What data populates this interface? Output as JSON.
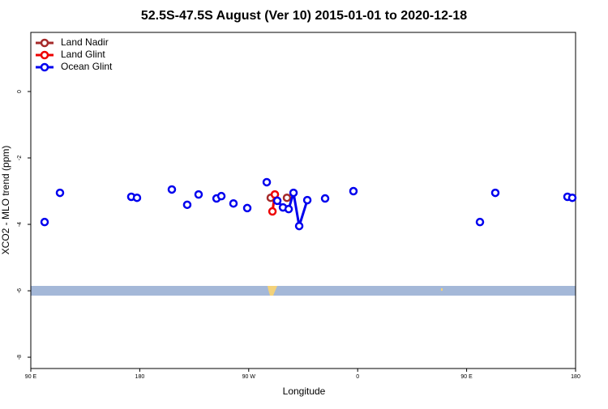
{
  "chart_data": {
    "type": "line",
    "title": "52.5S-47.5S August (Ver 10)   2015-01-01 to 2020-12-18",
    "x_label": "Longitude",
    "y_label": "XCO2 - MLO trend (ppm)",
    "xlim": [
      90,
      540
    ],
    "ylim": [
      -8.34,
      1.78
    ],
    "xticks": [
      {
        "value": 90,
        "label": "90 E"
      },
      {
        "value": 180,
        "label": "180"
      },
      {
        "value": 270,
        "label": "90 W"
      },
      {
        "value": 360,
        "label": "0"
      },
      {
        "value": 450,
        "label": "90 E"
      },
      {
        "value": 540,
        "label": "180"
      }
    ],
    "yticks": [
      0,
      -2,
      -4,
      -6,
      -8
    ],
    "legend_position": "top-left",
    "series": [
      {
        "name": "Land Nadir",
        "color": "#a52a2a",
        "x": [
          288.2,
          null,
          301.6
        ],
        "values": [
          -3.2,
          null,
          -3.2
        ]
      },
      {
        "name": "Land Glint",
        "color": "#ee0000",
        "x": [
          289.6,
          291.6
        ],
        "values": [
          -3.61,
          -3.1
        ]
      },
      {
        "name": "Ocean Glint",
        "color": "#0000ee",
        "x": [
          101.4,
          null,
          114.1,
          null,
          173.0,
          null,
          177.7,
          null,
          206.5,
          null,
          219.2,
          null,
          228.6,
          null,
          243.4,
          null,
          247.4,
          null,
          257.4,
          null,
          268.8,
          null,
          284.9,
          null,
          293.6,
          298.3,
          303.0,
          307.0,
          311.7,
          318.4,
          null,
          333.1,
          null,
          356.5,
          null,
          461.0,
          null,
          473.7,
          null,
          533.3,
          null,
          537.3
        ],
        "values": [
          -3.93,
          null,
          -3.05,
          null,
          -3.17,
          null,
          -3.2,
          null,
          -2.95,
          null,
          -3.41,
          null,
          -3.1,
          null,
          -3.22,
          null,
          -3.15,
          null,
          -3.37,
          null,
          -3.51,
          null,
          -2.73,
          null,
          -3.29,
          -3.49,
          -3.54,
          -3.05,
          -4.05,
          -3.27,
          null,
          -3.22,
          null,
          -3.0,
          null,
          -3.93,
          null,
          -3.05,
          null,
          -3.17,
          null,
          -3.2
        ]
      }
    ]
  }
}
